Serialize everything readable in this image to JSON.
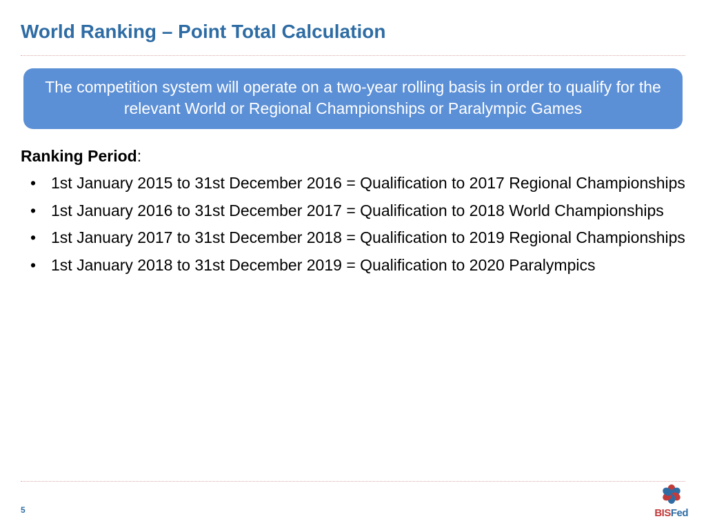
{
  "title": "World Ranking – Point Total Calculation",
  "callout": "The competition system will operate on a two-year rolling basis in order to qualify for the relevant World or Regional Championships or Paralympic Games",
  "section_title": "Ranking Period",
  "bullets": [
    "1st January 2015 to 31st December 2016 = Qualification to 2017 Regional Championships",
    "1st January 2016 to 31st December 2017 = Qualification to 2018 World Championships",
    "1st January 2017 to 31st December 2018 = Qualification to 2019 Regional Championships",
    "1st January 2018 to 31st December 2019 = Qualification to 2020 Paralympics"
  ],
  "page_number": "5",
  "logo": {
    "text_bis": "BIS",
    "text_fed": "Fed",
    "petal_red": "#c23b3b",
    "petal_blue": "#2e6ca4"
  },
  "colors": {
    "title": "#2e6ca4",
    "callout_bg": "#5b8fd6",
    "callout_text": "#ffffff",
    "body_text": "#000000",
    "divider": "#d9a5a5"
  }
}
